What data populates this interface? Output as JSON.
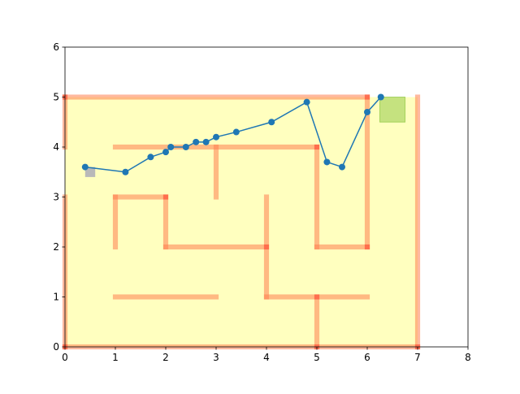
{
  "chart_data": {
    "type": "line",
    "title": "",
    "xlabel": "",
    "ylabel": "",
    "xlim": [
      0,
      8
    ],
    "ylim": [
      0,
      6
    ],
    "xticks": [
      "0",
      "1",
      "2",
      "3",
      "4",
      "5",
      "6",
      "7",
      "8"
    ],
    "yticks": [
      "0",
      "1",
      "2",
      "3",
      "4",
      "5",
      "6"
    ],
    "grid": false,
    "legend": "none",
    "colors": {
      "floor": "#ffffbf",
      "wall": "#ff7f50",
      "wall_joint": "#ff3b2f",
      "start": "#8a8ab5",
      "goal": "#8cc63f",
      "path": "#1f77b4"
    },
    "maze_floor": {
      "x": [
        0,
        7
      ],
      "y": [
        0,
        5
      ]
    },
    "walls": [
      {
        "x1": 0,
        "y1": 0,
        "x2": 7,
        "y2": 0
      },
      {
        "x1": 0,
        "y1": 0,
        "x2": 0,
        "y2": 3
      },
      {
        "x1": 0,
        "y1": 4,
        "x2": 0,
        "y2": 5
      },
      {
        "x1": 0,
        "y1": 5,
        "x2": 6,
        "y2": 5
      },
      {
        "x1": 7,
        "y1": 0,
        "x2": 7,
        "y2": 5
      },
      {
        "x1": 6,
        "y1": 2,
        "x2": 6,
        "y2": 5
      },
      {
        "x1": 1,
        "y1": 4,
        "x2": 5,
        "y2": 4
      },
      {
        "x1": 5,
        "y1": 2,
        "x2": 5,
        "y2": 4
      },
      {
        "x1": 5,
        "y1": 2,
        "x2": 6,
        "y2": 2
      },
      {
        "x1": 3,
        "y1": 3,
        "x2": 3,
        "y2": 4
      },
      {
        "x1": 1,
        "y1": 2,
        "x2": 1,
        "y2": 3
      },
      {
        "x1": 1,
        "y1": 3,
        "x2": 2,
        "y2": 3
      },
      {
        "x1": 2,
        "y1": 2,
        "x2": 2,
        "y2": 3
      },
      {
        "x1": 2,
        "y1": 2,
        "x2": 4,
        "y2": 2
      },
      {
        "x1": 4,
        "y1": 1,
        "x2": 4,
        "y2": 3
      },
      {
        "x1": 4,
        "y1": 1,
        "x2": 6,
        "y2": 1
      },
      {
        "x1": 1,
        "y1": 1,
        "x2": 3,
        "y2": 1
      },
      {
        "x1": 5,
        "y1": 0,
        "x2": 5,
        "y2": 1
      }
    ],
    "wall_joints": [
      {
        "x": 0,
        "y": 0
      },
      {
        "x": 0,
        "y": 5
      },
      {
        "x": 5,
        "y": 0
      },
      {
        "x": 7,
        "y": 0
      },
      {
        "x": 5,
        "y": 1
      },
      {
        "x": 6,
        "y": 5
      },
      {
        "x": 5,
        "y": 4
      },
      {
        "x": 6,
        "y": 2
      },
      {
        "x": 2,
        "y": 3
      },
      {
        "x": 4,
        "y": 2
      }
    ],
    "start_region": {
      "x": [
        0.4,
        0.6
      ],
      "y": [
        3.4,
        3.6
      ]
    },
    "goal_region": {
      "x": [
        6.25,
        6.75
      ],
      "y": [
        4.5,
        5.0
      ]
    },
    "series": [
      {
        "x": [
          0.4,
          1.2,
          1.7,
          2.0,
          2.1,
          2.4,
          2.6,
          2.8,
          3.0,
          3.4,
          4.1,
          4.8,
          5.2,
          5.5,
          6.0,
          6.27
        ],
        "y": [
          3.6,
          3.5,
          3.8,
          3.9,
          4.0,
          4.0,
          4.1,
          4.1,
          4.2,
          4.3,
          4.5,
          4.9,
          3.7,
          3.6,
          4.7,
          5.0
        ]
      }
    ]
  }
}
